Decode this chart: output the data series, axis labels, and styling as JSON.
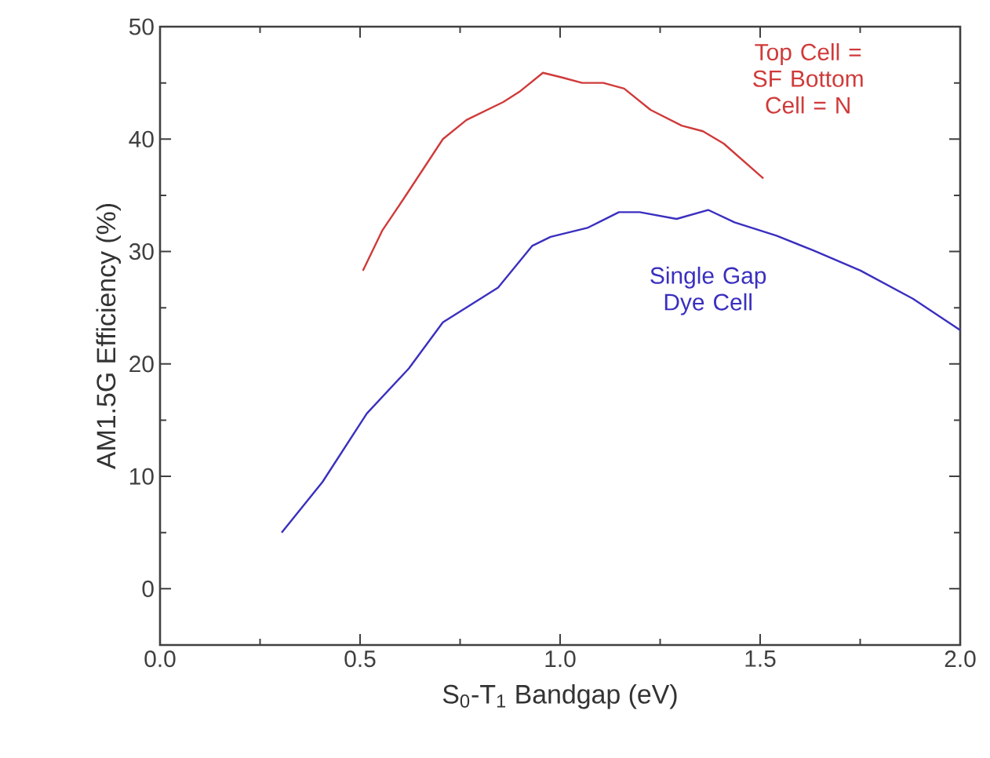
{
  "chart_data": {
    "type": "line",
    "xlabel": "S$_{0}$-T$_{1}$ Bandgap (eV)",
    "ylabel": "AM1.5G Efficiency (%)",
    "xlim": [
      0,
      2
    ],
    "xticks": [
      {
        "value": 0,
        "label": "0.0"
      },
      {
        "value": 0.5,
        "label": "0.5"
      },
      {
        "value": 1,
        "label": "1.0"
      },
      {
        "value": 1.5,
        "label": "1.5"
      },
      {
        "value": 2,
        "label": "2.0"
      }
    ],
    "ylim": [
      -5,
      50
    ],
    "yticks": [
      0,
      10,
      20,
      30,
      40,
      50
    ],
    "series": [
      {
        "name": "Top Cell = SF Bottom Cell = N",
        "color": "#d03a3a",
        "x": [
          0.507,
          0.556,
          0.609,
          0.707,
          0.766,
          0.858,
          0.898,
          0.957,
          1.003,
          1.055,
          1.108,
          1.16,
          1.226,
          1.304,
          1.357,
          1.409,
          1.508
        ],
        "values": [
          28.3,
          31.9,
          34.7,
          40.0,
          41.7,
          43.3,
          44.2,
          45.9,
          45.5,
          45.0,
          45.0,
          44.5,
          42.6,
          41.2,
          40.7,
          39.6,
          36.5
        ]
      },
      {
        "name": "Single Gap Dye Cell",
        "color": "#3a2fbf",
        "x": [
          0.304,
          0.406,
          0.517,
          0.622,
          0.707,
          0.845,
          0.93,
          0.976,
          1.068,
          1.147,
          1.199,
          1.291,
          1.37,
          1.436,
          1.541,
          1.633,
          1.751,
          1.882,
          2.0
        ],
        "values": [
          5.0,
          9.5,
          15.6,
          19.6,
          23.7,
          26.8,
          30.5,
          31.3,
          32.1,
          33.5,
          33.5,
          32.9,
          33.7,
          32.6,
          31.4,
          30.1,
          28.3,
          25.8,
          23.0
        ]
      }
    ]
  }
}
